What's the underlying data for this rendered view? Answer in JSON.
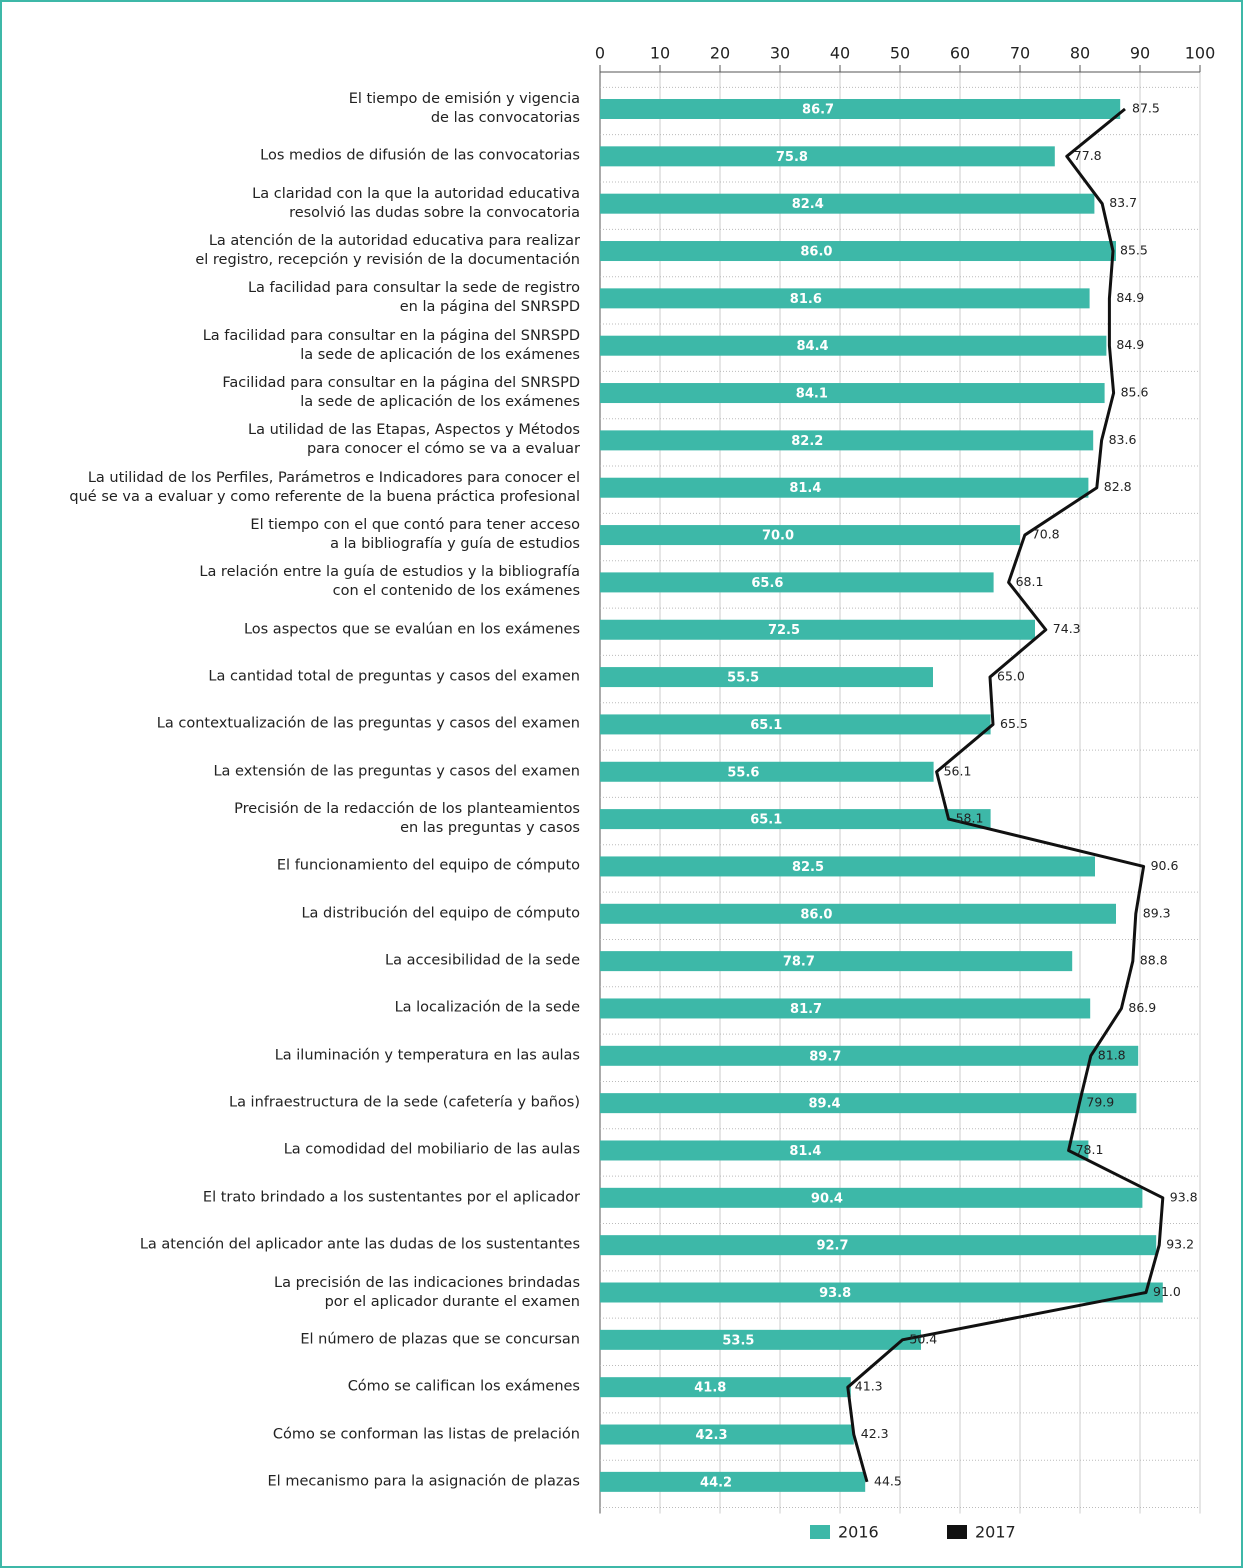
{
  "chart_data": {
    "type": "bar",
    "orientation": "horizontal",
    "categories": [
      "El tiempo de emisión y vigencia\nde las convocatorias",
      "Los medios de difusión de las convocatorias",
      "La claridad con la que la autoridad educativa\nresolvió las dudas sobre la convocatoria",
      "La atención de la autoridad educativa para realizar\nel registro, recepción y revisión de la documentación",
      "La facilidad para consultar la sede de registro\nen la página del SNRSPD",
      "La facilidad para consultar en la página del SNRSPD\nla sede de aplicación de los exámenes",
      "Facilidad para consultar en la página del SNRSPD\nla sede de aplicación de los exámenes",
      "La utilidad de las Etapas, Aspectos y Métodos\npara conocer el cómo se va a evaluar",
      "La utilidad de los Perfiles, Parámetros e Indicadores para conocer el\nqué se va a evaluar y como referente de la buena práctica profesional",
      "El tiempo con el que contó para tener acceso\na la bibliografía y guía de estudios",
      "La relación entre la guía de estudios y la bibliografía\ncon el contenido de los exámenes",
      "Los aspectos que se evalúan en los exámenes",
      "La cantidad total de preguntas y casos del examen",
      "La contextualización de las preguntas y casos del examen",
      "La extensión de las preguntas y casos del examen",
      "Precisión de la redacción de los planteamientos\nen las preguntas y casos",
      "El funcionamiento del equipo de cómputo",
      "La distribución del equipo de cómputo",
      "La accesibilidad de la sede",
      "La localización de la sede",
      "La iluminación y temperatura en las aulas",
      "La infraestructura de la sede (cafetería y baños)",
      "La comodidad del mobiliario de las aulas",
      "El trato brindado a los sustentantes por el aplicador",
      "La atención del aplicador ante las dudas de los sustentantes",
      "La precisión de las indicaciones brindadas\npor el aplicador durante el examen",
      "El número de plazas que se concursan",
      "Cómo se califican los exámenes",
      "Cómo se conforman las listas de prelación",
      "El mecanismo para la asignación de plazas"
    ],
    "series": [
      {
        "name": "2016",
        "type": "bar",
        "color": "#3db8a8",
        "values": [
          86.7,
          75.8,
          82.4,
          86.0,
          81.6,
          84.4,
          84.1,
          82.2,
          81.4,
          70.0,
          65.6,
          72.5,
          55.5,
          65.1,
          55.6,
          65.1,
          82.5,
          86.0,
          78.7,
          81.7,
          89.7,
          89.4,
          81.4,
          90.4,
          92.7,
          93.8,
          53.5,
          41.8,
          42.3,
          44.2
        ],
        "value_labels": [
          "86.7",
          "75.8",
          "82.4",
          "86.0",
          "81.6",
          "84.4",
          "84.1",
          "82.2",
          "81.4",
          "70.0",
          "65.6",
          "72.5",
          "55.5",
          "65.1",
          "55.6",
          "65.1",
          "82.5",
          "86.0",
          "78.7",
          "81.7",
          "89.7",
          "89.4",
          "81.4",
          "90.4",
          "92.7",
          "93.8",
          "53.5",
          "41.8",
          "42.3",
          "44.2"
        ]
      },
      {
        "name": "2017",
        "type": "line",
        "color": "#111111",
        "values": [
          87.5,
          77.8,
          83.7,
          85.5,
          84.9,
          84.9,
          85.6,
          83.6,
          82.8,
          70.8,
          68.1,
          74.3,
          65.0,
          65.5,
          56.1,
          58.1,
          90.6,
          89.3,
          88.8,
          86.9,
          81.8,
          79.9,
          78.1,
          93.8,
          93.2,
          91.0,
          50.4,
          41.3,
          42.3,
          44.5
        ],
        "value_labels": [
          "87.5",
          "77.8",
          "83.7",
          "85.5",
          "84.9",
          "84.9",
          "85.6",
          "83.6",
          "82.8",
          "70.8",
          "68.1",
          "74.3",
          "65.0",
          "65.5",
          "56.1",
          "58.1",
          "90.6",
          "89.3",
          "88.8",
          "86.9",
          "81.8",
          "79.9",
          "78.1",
          "93.8",
          "93.2",
          "91.0",
          "50.4",
          "41.3",
          "42.3",
          "44.5"
        ]
      }
    ],
    "xlim": [
      0,
      100
    ],
    "xticks": [
      0,
      10,
      20,
      30,
      40,
      50,
      60,
      70,
      80,
      90,
      100
    ],
    "grid": true,
    "legend": "bottom"
  }
}
